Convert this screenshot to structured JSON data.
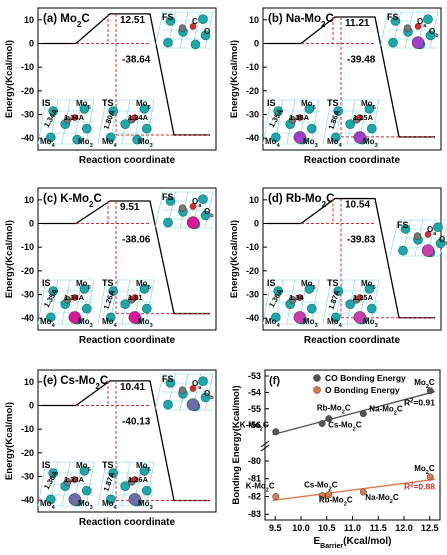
{
  "chart_data": [
    {
      "type": "line",
      "panel": "(a)",
      "title": "Mo2C",
      "xlabel": "Reaction coordinate",
      "ylabel": "Energy(Kcal/mol)",
      "ylim": [
        -45,
        15
      ],
      "yticks": [
        10,
        0,
        -10,
        -20,
        -30,
        -40
      ],
      "path_levels": [
        0,
        12.51,
        -38.64
      ],
      "barrier_label": "12.51",
      "reaction_label": "-38.64",
      "state_labels": [
        "IS",
        "TS",
        "FS"
      ],
      "atom_labels": [
        "Mo5",
        "Mo4",
        "Mo3",
        "Mo5",
        "Mo4",
        "Mo3",
        "C",
        "O"
      ],
      "distance_labels": [
        "1.34A",
        "1.34A",
        "1.80A",
        "1.24A"
      ]
    },
    {
      "type": "line",
      "panel": "(b)",
      "title": "Na-Mo2C",
      "xlabel": "Reaction coordinate",
      "ylabel": "Energy(Kcal/mol)",
      "ylim": [
        -45,
        15
      ],
      "yticks": [
        10,
        0,
        -10,
        -20,
        -30,
        -40
      ],
      "path_levels": [
        0,
        11.21,
        -39.48
      ],
      "barrier_label": "11.21",
      "reaction_label": "-39.48",
      "state_labels": [
        "IS",
        "TS",
        "FS"
      ],
      "atom_labels": [
        "Mo5",
        "Mo4",
        "Mo3",
        "Mo5",
        "Mo4",
        "Mo3",
        "Oa",
        "Ob"
      ],
      "distance_labels": [
        "1.35A",
        "1.35A",
        "1.86A",
        "1.25A"
      ]
    },
    {
      "type": "line",
      "panel": "(c)",
      "title": "K-Mo2C",
      "xlabel": "Reaction coordinate",
      "ylabel": "Energy(Kcal/mol)",
      "ylim": [
        -45,
        15
      ],
      "yticks": [
        10,
        0,
        -10,
        -20,
        -30,
        -40
      ],
      "path_levels": [
        0,
        9.51,
        -38.06
      ],
      "barrier_label": "9.51",
      "reaction_label": "-38.06",
      "state_labels": [
        "IS",
        "TS",
        "FS"
      ],
      "atom_labels": [
        "Mo5",
        "Mo4",
        "Mo3",
        "Mo5",
        "Mo4",
        "Mo3",
        "Oa",
        "Ob"
      ],
      "distance_labels": [
        "1.35A",
        "1.34A",
        "1.26A",
        "1.81"
      ]
    },
    {
      "type": "line",
      "panel": "(d)",
      "title": "Rb-Mo2C",
      "xlabel": "Reaction coordinate",
      "ylabel": "Energy(Kcal/mol)",
      "ylim": [
        -45,
        15
      ],
      "yticks": [
        10,
        0,
        -10,
        -20,
        -30,
        -40
      ],
      "path_levels": [
        0,
        10.54,
        -39.83
      ],
      "barrier_label": "10.54",
      "reaction_label": "-39.83",
      "state_labels": [
        "IS",
        "TS",
        "FS"
      ],
      "atom_labels": [
        "Mo5",
        "Mo4",
        "Mo3",
        "Mo5",
        "Mo4",
        "Mo3",
        "Oa",
        "Ob"
      ],
      "distance_labels": [
        "1.36A",
        "1.34",
        "1.87A",
        "1.25A"
      ]
    },
    {
      "type": "line",
      "panel": "(e)",
      "title": "Cs-Mo2C",
      "xlabel": "Reaction coordinate",
      "ylabel": "Energy(Kcal/mol)",
      "ylim": [
        -45,
        15
      ],
      "yticks": [
        10,
        0,
        -10,
        -20,
        -30,
        -40
      ],
      "path_levels": [
        0,
        10.41,
        -40.13
      ],
      "barrier_label": "10.41",
      "reaction_label": "-40.13",
      "state_labels": [
        "IS",
        "TS",
        "FS"
      ],
      "atom_labels": [
        "Mo5",
        "Mo4",
        "Mo3",
        "Mo5",
        "Mo4",
        "Mo3",
        "Oa",
        "Ob"
      ],
      "distance_labels": [
        "1.36A",
        "1.33A",
        "1.87A",
        "1.26A"
      ]
    },
    {
      "type": "scatter",
      "panel": "(f)",
      "xlabel": "EBarrier(Kcal/mol)",
      "ylabel": "Bonding Energy(Kcal/mol)",
      "xlim": [
        9.3,
        12.7
      ],
      "xticks": [
        "9.5",
        "10.0",
        "10.5",
        "11.0",
        "11.5",
        "12.0",
        "12.5"
      ],
      "yticks_top": [
        "-53",
        "-54",
        "-55",
        "-56"
      ],
      "yticks_bottom": [
        "-80",
        "-81",
        "-82",
        "-83"
      ],
      "series": [
        {
          "name": "CO Bonding Energy",
          "color": "#555555",
          "labels": [
            "K-Mo2C",
            "Cs-Mo2C",
            "Rb-Mo2C",
            "Na-Mo2C",
            "Mo2C"
          ],
          "x": [
            9.51,
            10.41,
            10.54,
            11.21,
            12.51
          ],
          "y": [
            -56.4,
            -55.9,
            -55.6,
            -55.3,
            -53.9
          ],
          "r2": "R2=0.91"
        },
        {
          "name": "O Bonding Energy",
          "color": "#d9774f",
          "labels": [
            "K-Mo2C",
            "Cs-Mo2C",
            "Rb-Mo2C",
            "Na-Mo2C",
            "Mo2C"
          ],
          "x": [
            9.51,
            10.41,
            10.54,
            11.21,
            12.51
          ],
          "y": [
            -82.0,
            -81.95,
            -81.9,
            -81.75,
            -80.9
          ],
          "r2": "R2=0.88"
        }
      ]
    }
  ]
}
